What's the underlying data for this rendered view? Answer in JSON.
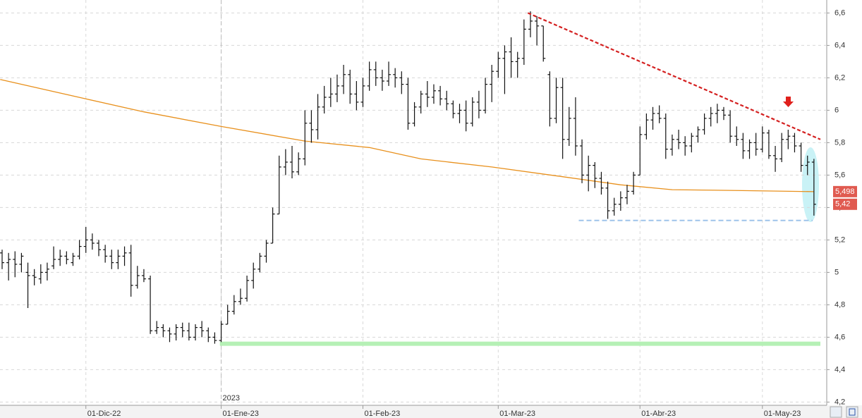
{
  "chart_data": {
    "type": "ohlc",
    "categories": [
      null,
      null,
      null,
      null,
      null,
      null,
      null,
      null,
      null,
      null,
      null,
      null,
      null,
      "01-Dic-22",
      null,
      null,
      null,
      null,
      null,
      null,
      null,
      null,
      null,
      null,
      null,
      null,
      null,
      null,
      null,
      null,
      null,
      null,
      null,
      null,
      "01-Ene-23",
      null,
      null,
      null,
      null,
      null,
      null,
      null,
      null,
      null,
      null,
      null,
      null,
      null,
      null,
      null,
      null,
      null,
      null,
      null,
      null,
      null,
      "01-Feb-23",
      null,
      null,
      null,
      null,
      null,
      null,
      null,
      null,
      null,
      null,
      null,
      null,
      null,
      null,
      null,
      null,
      null,
      null,
      null,
      null,
      "01-Mar-23",
      null,
      null,
      null,
      null,
      null,
      null,
      null,
      null,
      null,
      null,
      null,
      null,
      null,
      null,
      null,
      null,
      null,
      null,
      null,
      null,
      null,
      "01-Abr-23",
      null,
      null,
      null,
      null,
      null,
      null,
      null,
      null,
      null,
      null,
      null,
      null,
      null,
      null,
      null,
      null,
      null,
      null,
      "01-May-23",
      null,
      null,
      null,
      null,
      null,
      null,
      null,
      null
    ],
    "bars": [
      [
        5.12,
        5.14,
        5.02,
        5.06
      ],
      [
        5.06,
        5.12,
        4.95,
        5.08
      ],
      [
        5.08,
        5.13,
        4.97,
        5.05
      ],
      [
        5.05,
        5.12,
        5.0,
        5.1
      ],
      [
        5.0,
        5.06,
        4.78,
        4.98
      ],
      [
        4.98,
        5.02,
        4.92,
        4.97
      ],
      [
        4.96,
        5.05,
        4.93,
        5.0
      ],
      [
        5.0,
        5.06,
        4.95,
        5.02
      ],
      [
        5.04,
        5.16,
        5.02,
        5.08
      ],
      [
        5.08,
        5.14,
        5.04,
        5.1
      ],
      [
        5.1,
        5.13,
        5.05,
        5.08
      ],
      [
        5.06,
        5.12,
        5.04,
        5.1
      ],
      [
        5.1,
        5.2,
        5.08,
        5.16
      ],
      [
        5.16,
        5.28,
        5.12,
        5.2
      ],
      [
        5.2,
        5.24,
        5.14,
        5.18
      ],
      [
        5.18,
        5.2,
        5.1,
        5.14
      ],
      [
        5.14,
        5.17,
        5.06,
        5.1
      ],
      [
        5.1,
        5.14,
        5.02,
        5.06
      ],
      [
        5.06,
        5.14,
        5.02,
        5.1
      ],
      [
        5.1,
        5.16,
        5.04,
        5.12
      ],
      [
        5.12,
        5.17,
        4.85,
        4.92
      ],
      [
        4.92,
        5.04,
        4.9,
        4.98
      ],
      [
        4.98,
        5.02,
        4.94,
        4.96
      ],
      [
        4.96,
        4.98,
        4.62,
        4.64
      ],
      [
        4.64,
        4.7,
        4.62,
        4.66
      ],
      [
        4.66,
        4.68,
        4.6,
        4.64
      ],
      [
        4.64,
        4.66,
        4.57,
        4.62
      ],
      [
        4.62,
        4.68,
        4.58,
        4.66
      ],
      [
        4.66,
        4.69,
        4.6,
        4.64
      ],
      [
        4.64,
        4.69,
        4.58,
        4.6
      ],
      [
        4.6,
        4.68,
        4.58,
        4.66
      ],
      [
        4.66,
        4.7,
        4.6,
        4.64
      ],
      [
        4.64,
        4.66,
        4.57,
        4.6
      ],
      [
        4.6,
        4.63,
        4.56,
        4.58
      ],
      [
        4.58,
        4.7,
        4.57,
        4.68
      ],
      [
        4.68,
        4.8,
        4.68,
        4.76
      ],
      [
        4.76,
        4.86,
        4.74,
        4.82
      ],
      [
        4.82,
        4.9,
        4.8,
        4.84
      ],
      [
        4.84,
        4.98,
        4.82,
        4.95
      ],
      [
        4.95,
        5.06,
        4.9,
        5.02
      ],
      [
        5.02,
        5.12,
        5.0,
        5.1
      ],
      [
        5.1,
        5.2,
        5.06,
        5.18
      ],
      [
        5.18,
        5.4,
        5.18,
        5.36
      ],
      [
        5.36,
        5.72,
        5.36,
        5.65
      ],
      [
        5.65,
        5.76,
        5.6,
        5.68
      ],
      [
        5.68,
        5.78,
        5.58,
        5.62
      ],
      [
        5.62,
        5.74,
        5.6,
        5.7
      ],
      [
        5.7,
        6.0,
        5.66,
        5.92
      ],
      [
        5.92,
        6.0,
        5.8,
        5.88
      ],
      [
        5.88,
        6.1,
        5.82,
        6.02
      ],
      [
        6.02,
        6.15,
        5.98,
        6.08
      ],
      [
        6.08,
        6.2,
        6.02,
        6.1
      ],
      [
        6.1,
        6.22,
        6.05,
        6.15
      ],
      [
        6.15,
        6.28,
        6.1,
        6.22
      ],
      [
        6.22,
        6.25,
        6.04,
        6.1
      ],
      [
        6.1,
        6.18,
        6.0,
        6.05
      ],
      [
        6.05,
        6.2,
        6.02,
        6.15
      ],
      [
        6.15,
        6.3,
        6.12,
        6.25
      ],
      [
        6.25,
        6.3,
        6.15,
        6.2
      ],
      [
        6.2,
        6.25,
        6.12,
        6.18
      ],
      [
        6.18,
        6.3,
        6.15,
        6.22
      ],
      [
        6.22,
        6.26,
        6.14,
        6.2
      ],
      [
        6.2,
        6.24,
        6.1,
        6.16
      ],
      [
        6.16,
        6.2,
        5.88,
        5.92
      ],
      [
        5.92,
        6.05,
        5.9,
        6.02
      ],
      [
        6.02,
        6.12,
        5.98,
        6.1
      ],
      [
        6.1,
        6.18,
        6.02,
        6.08
      ],
      [
        6.08,
        6.16,
        6.04,
        6.12
      ],
      [
        6.12,
        6.15,
        6.03,
        6.07
      ],
      [
        6.07,
        6.12,
        6.0,
        6.04
      ],
      [
        6.04,
        6.06,
        5.95,
        5.98
      ],
      [
        5.98,
        6.04,
        5.92,
        6.0
      ],
      [
        6.0,
        6.06,
        5.87,
        5.92
      ],
      [
        5.92,
        6.08,
        5.9,
        6.05
      ],
      [
        6.05,
        6.12,
        5.95,
        6.0
      ],
      [
        6.0,
        6.2,
        5.98,
        6.16
      ],
      [
        6.16,
        6.28,
        6.05,
        6.24
      ],
      [
        6.24,
        6.36,
        6.2,
        6.32
      ],
      [
        6.32,
        6.4,
        6.1,
        6.36
      ],
      [
        6.36,
        6.45,
        6.2,
        6.3
      ],
      [
        6.3,
        6.36,
        6.2,
        6.32
      ],
      [
        6.32,
        6.56,
        6.28,
        6.5
      ],
      [
        6.5,
        6.61,
        6.45,
        6.55
      ],
      [
        6.55,
        6.58,
        6.4,
        6.52
      ],
      [
        6.52,
        6.52,
        6.3,
        6.32
      ],
      [
        6.22,
        6.24,
        5.9,
        5.95
      ],
      [
        5.95,
        6.2,
        5.92,
        6.14
      ],
      [
        6.14,
        6.2,
        5.7,
        5.82
      ],
      [
        5.82,
        6.02,
        5.78,
        5.95
      ],
      [
        5.95,
        6.08,
        5.72,
        5.78
      ],
      [
        5.78,
        5.82,
        5.55,
        5.6
      ],
      [
        5.6,
        5.72,
        5.5,
        5.66
      ],
      [
        5.66,
        5.68,
        5.52,
        5.58
      ],
      [
        5.58,
        5.62,
        5.48,
        5.52
      ],
      [
        5.52,
        5.56,
        5.33,
        5.38
      ],
      [
        5.38,
        5.46,
        5.35,
        5.42
      ],
      [
        5.42,
        5.5,
        5.38,
        5.46
      ],
      [
        5.46,
        5.54,
        5.42,
        5.5
      ],
      [
        5.5,
        5.62,
        5.48,
        5.6
      ],
      [
        5.6,
        5.9,
        5.6,
        5.85
      ],
      [
        5.85,
        5.98,
        5.82,
        5.94
      ],
      [
        5.94,
        6.02,
        5.88,
        5.98
      ],
      [
        5.98,
        6.03,
        5.92,
        5.95
      ],
      [
        5.95,
        5.98,
        5.7,
        5.76
      ],
      [
        5.76,
        5.85,
        5.72,
        5.82
      ],
      [
        5.82,
        5.88,
        5.76,
        5.8
      ],
      [
        5.8,
        5.84,
        5.72,
        5.78
      ],
      [
        5.78,
        5.86,
        5.74,
        5.84
      ],
      [
        5.84,
        5.9,
        5.8,
        5.88
      ],
      [
        5.88,
        5.98,
        5.85,
        5.95
      ],
      [
        5.95,
        6.02,
        5.9,
        5.98
      ],
      [
        5.98,
        6.04,
        5.92,
        6.0
      ],
      [
        6.0,
        6.02,
        5.94,
        5.97
      ],
      [
        5.97,
        6.0,
        5.8,
        5.84
      ],
      [
        5.84,
        5.9,
        5.78,
        5.82
      ],
      [
        5.82,
        5.86,
        5.7,
        5.75
      ],
      [
        5.75,
        5.82,
        5.7,
        5.8
      ],
      [
        5.8,
        5.86,
        5.72,
        5.76
      ],
      [
        5.76,
        5.9,
        5.74,
        5.86
      ],
      [
        5.86,
        5.88,
        5.7,
        5.72
      ],
      [
        5.72,
        5.78,
        5.62,
        5.7
      ],
      [
        5.7,
        5.86,
        5.68,
        5.82
      ],
      [
        5.82,
        5.88,
        5.76,
        5.84
      ],
      [
        5.84,
        5.86,
        5.74,
        5.78
      ],
      [
        5.78,
        5.8,
        5.62,
        5.66
      ],
      [
        5.66,
        5.72,
        5.6,
        5.68
      ],
      [
        5.68,
        5.7,
        5.35,
        5.42
      ]
    ],
    "bar_color": "#111111",
    "moving_average": {
      "color": "#e8901c",
      "x": [
        -0.3,
        13,
        22,
        34,
        47,
        57,
        65,
        76,
        87,
        96,
        104,
        114,
        126
      ],
      "values": [
        6.19,
        6.07,
        5.99,
        5.9,
        5.81,
        5.77,
        5.7,
        5.65,
        5.59,
        5.54,
        5.51,
        5.505,
        5.498
      ]
    },
    "trendline": {
      "color": "#d42020",
      "x": [
        81.6,
        127
      ],
      "values": [
        6.6,
        5.82
      ]
    },
    "support_line": {
      "color": "#9ec3ea",
      "x": [
        89.5,
        125.8
      ],
      "values": [
        5.32,
        5.32
      ]
    },
    "base_line": {
      "color": "#b5f0b5",
      "x": [
        33.8,
        127
      ],
      "values": [
        4.56,
        4.56
      ]
    },
    "price_tags": [
      {
        "value": 5.498,
        "label": "5,498"
      },
      {
        "value": 5.42,
        "label": "5,42"
      }
    ],
    "year_label": "2023",
    "ylim": [
      4.18,
      6.68
    ],
    "yticks": [
      {
        "value": 4.2,
        "label": "4,2"
      },
      {
        "value": 4.4,
        "label": "4,4"
      },
      {
        "value": 4.6,
        "label": "4,6"
      },
      {
        "value": 4.8,
        "label": "4,8"
      },
      5,
      {
        "value": 5.2,
        "label": "5,2"
      },
      {
        "value": 5.4,
        "label": "5,4"
      },
      {
        "value": 5.6,
        "label": "5,6"
      },
      {
        "value": 5.8,
        "label": "5,8"
      },
      6,
      {
        "value": 6.2,
        "label": "6,2"
      },
      {
        "value": 6.4,
        "label": "6,4"
      },
      {
        "value": 6.6,
        "label": "6,6"
      }
    ],
    "grid": true
  }
}
